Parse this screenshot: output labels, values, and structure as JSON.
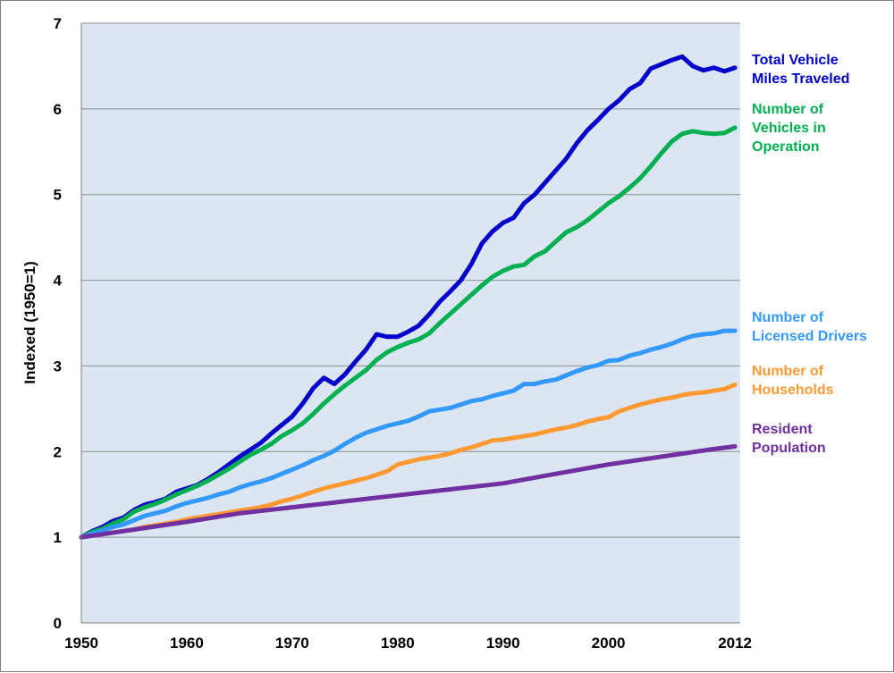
{
  "chart_data": {
    "type": "line",
    "ylabel": "Indexed (1950=1)",
    "xlabel": "",
    "xlim": [
      1950,
      2012.5
    ],
    "ylim": [
      0,
      7
    ],
    "x_ticks": [
      {
        "value": 1950,
        "label": "1950"
      },
      {
        "value": 1960,
        "label": "1960"
      },
      {
        "value": 1970,
        "label": "1970"
      },
      {
        "value": 1980,
        "label": "1980"
      },
      {
        "value": 1990,
        "label": "1990"
      },
      {
        "value": 2000,
        "label": "2000"
      },
      {
        "value": 2012,
        "label": "2012"
      }
    ],
    "y_ticks": [
      {
        "value": 0,
        "label": "0"
      },
      {
        "value": 1,
        "label": "1"
      },
      {
        "value": 2,
        "label": "2"
      },
      {
        "value": 3,
        "label": "3"
      },
      {
        "value": 4,
        "label": "4"
      },
      {
        "value": 5,
        "label": "5"
      },
      {
        "value": 6,
        "label": "6"
      },
      {
        "value": 7,
        "label": "7"
      }
    ],
    "grid": true,
    "legend": "right, labels beside line ends",
    "plot_background": "#dce6f2",
    "series": [
      {
        "name": "Total Vehicle Miles Traveled",
        "label_lines": [
          "Total Vehicle",
          "Miles Traveled"
        ],
        "color": "#0000cc",
        "x": [
          1950,
          1951,
          1952,
          1953,
          1954,
          1955,
          1956,
          1957,
          1958,
          1959,
          1960,
          1961,
          1962,
          1963,
          1964,
          1965,
          1966,
          1967,
          1968,
          1969,
          1970,
          1971,
          1972,
          1973,
          1974,
          1975,
          1976,
          1977,
          1978,
          1979,
          1980,
          1981,
          1982,
          1983,
          1984,
          1985,
          1986,
          1987,
          1988,
          1989,
          1990,
          1991,
          1992,
          1993,
          1994,
          1995,
          1996,
          1997,
          1998,
          1999,
          2000,
          2001,
          2002,
          2003,
          2004,
          2005,
          2006,
          2007,
          2008,
          2009,
          2010,
          2011,
          2012
        ],
        "y": [
          1.0,
          1.07,
          1.12,
          1.19,
          1.23,
          1.32,
          1.38,
          1.41,
          1.45,
          1.53,
          1.57,
          1.61,
          1.68,
          1.76,
          1.85,
          1.94,
          2.02,
          2.1,
          2.21,
          2.31,
          2.41,
          2.56,
          2.74,
          2.86,
          2.79,
          2.9,
          3.05,
          3.19,
          3.37,
          3.34,
          3.34,
          3.4,
          3.47,
          3.6,
          3.75,
          3.87,
          4.0,
          4.19,
          4.43,
          4.57,
          4.67,
          4.73,
          4.9,
          5.0,
          5.14,
          5.28,
          5.42,
          5.6,
          5.75,
          5.87,
          6.0,
          6.1,
          6.23,
          6.3,
          6.47,
          6.52,
          6.57,
          6.61,
          6.5,
          6.45,
          6.48,
          6.44,
          6.48
        ]
      },
      {
        "name": "Number of Vehicles in Operation",
        "label_lines": [
          "Number of",
          "Vehicles in",
          "Operation"
        ],
        "color": "#00b050",
        "x": [
          1950,
          1951,
          1952,
          1953,
          1954,
          1955,
          1956,
          1957,
          1958,
          1959,
          1960,
          1961,
          1962,
          1963,
          1964,
          1965,
          1966,
          1967,
          1968,
          1969,
          1970,
          1971,
          1972,
          1973,
          1974,
          1975,
          1976,
          1977,
          1978,
          1979,
          1980,
          1981,
          1982,
          1983,
          1984,
          1985,
          1986,
          1987,
          1988,
          1989,
          1990,
          1991,
          1992,
          1993,
          1994,
          1995,
          1996,
          1997,
          1998,
          1999,
          2000,
          2001,
          2002,
          2003,
          2004,
          2005,
          2006,
          2007,
          2008,
          2009,
          2010,
          2011,
          2012
        ],
        "y": [
          1.0,
          1.06,
          1.1,
          1.16,
          1.21,
          1.3,
          1.35,
          1.39,
          1.44,
          1.5,
          1.55,
          1.6,
          1.66,
          1.73,
          1.8,
          1.88,
          1.96,
          2.02,
          2.09,
          2.18,
          2.25,
          2.33,
          2.44,
          2.56,
          2.67,
          2.77,
          2.86,
          2.95,
          3.07,
          3.16,
          3.22,
          3.27,
          3.31,
          3.38,
          3.5,
          3.61,
          3.72,
          3.83,
          3.94,
          4.04,
          4.11,
          4.16,
          4.18,
          4.28,
          4.34,
          4.45,
          4.56,
          4.62,
          4.7,
          4.8,
          4.9,
          4.98,
          5.08,
          5.19,
          5.33,
          5.48,
          5.62,
          5.71,
          5.74,
          5.72,
          5.71,
          5.72,
          5.78
        ]
      },
      {
        "name": "Number of Licensed Drivers",
        "label_lines": [
          "Number of",
          "Licensed Drivers"
        ],
        "color": "#3399ff",
        "x": [
          1950,
          1951,
          1952,
          1953,
          1954,
          1955,
          1956,
          1957,
          1958,
          1959,
          1960,
          1961,
          1962,
          1963,
          1964,
          1965,
          1966,
          1967,
          1968,
          1969,
          1970,
          1971,
          1972,
          1973,
          1974,
          1975,
          1976,
          1977,
          1978,
          1979,
          1980,
          1981,
          1982,
          1983,
          1984,
          1985,
          1986,
          1987,
          1988,
          1989,
          1990,
          1991,
          1992,
          1993,
          1994,
          1995,
          1996,
          1997,
          1998,
          1999,
          2000,
          2001,
          2002,
          2003,
          2004,
          2005,
          2006,
          2007,
          2008,
          2009,
          2010,
          2011,
          2012
        ],
        "y": [
          1.0,
          1.04,
          1.08,
          1.12,
          1.15,
          1.2,
          1.25,
          1.28,
          1.31,
          1.36,
          1.4,
          1.43,
          1.46,
          1.5,
          1.53,
          1.58,
          1.62,
          1.65,
          1.69,
          1.74,
          1.79,
          1.84,
          1.9,
          1.95,
          2.01,
          2.09,
          2.16,
          2.22,
          2.26,
          2.3,
          2.33,
          2.36,
          2.41,
          2.47,
          2.49,
          2.51,
          2.55,
          2.59,
          2.61,
          2.65,
          2.68,
          2.71,
          2.79,
          2.79,
          2.82,
          2.84,
          2.89,
          2.94,
          2.98,
          3.01,
          3.06,
          3.07,
          3.12,
          3.15,
          3.19,
          3.22,
          3.26,
          3.31,
          3.35,
          3.37,
          3.38,
          3.41,
          3.41
        ]
      },
      {
        "name": "Number of Households",
        "label_lines": [
          "Number of",
          "Households"
        ],
        "color": "#ff9933",
        "x": [
          1955,
          1956,
          1957,
          1958,
          1959,
          1960,
          1961,
          1962,
          1963,
          1964,
          1965,
          1966,
          1967,
          1968,
          1969,
          1970,
          1971,
          1972,
          1973,
          1974,
          1975,
          1976,
          1977,
          1978,
          1979,
          1980,
          1981,
          1982,
          1983,
          1984,
          1985,
          1986,
          1987,
          1988,
          1989,
          1990,
          1991,
          1992,
          1993,
          1994,
          1995,
          1996,
          1997,
          1998,
          1999,
          2000,
          2001,
          2002,
          2003,
          2004,
          2005,
          2006,
          2007,
          2008,
          2009,
          2010,
          2011,
          2012
        ],
        "y": [
          1.09,
          1.12,
          1.14,
          1.16,
          1.18,
          1.21,
          1.23,
          1.25,
          1.27,
          1.29,
          1.31,
          1.33,
          1.35,
          1.38,
          1.42,
          1.45,
          1.49,
          1.53,
          1.57,
          1.6,
          1.63,
          1.66,
          1.69,
          1.73,
          1.77,
          1.85,
          1.88,
          1.91,
          1.93,
          1.95,
          1.98,
          2.02,
          2.05,
          2.09,
          2.13,
          2.14,
          2.16,
          2.18,
          2.2,
          2.23,
          2.26,
          2.28,
          2.31,
          2.35,
          2.38,
          2.4,
          2.47,
          2.51,
          2.55,
          2.58,
          2.61,
          2.63,
          2.66,
          2.68,
          2.69,
          2.71,
          2.73,
          2.78
        ]
      },
      {
        "name": "Resident Population",
        "label_lines": [
          "Resident",
          "Population"
        ],
        "color": "#7030a0",
        "x": [
          1950,
          1955,
          1960,
          1965,
          1970,
          1975,
          1980,
          1985,
          1990,
          1995,
          2000,
          2005,
          2010,
          2012
        ],
        "y": [
          1.0,
          1.09,
          1.18,
          1.28,
          1.35,
          1.42,
          1.49,
          1.56,
          1.63,
          1.74,
          1.85,
          1.94,
          2.03,
          2.06
        ]
      }
    ]
  }
}
